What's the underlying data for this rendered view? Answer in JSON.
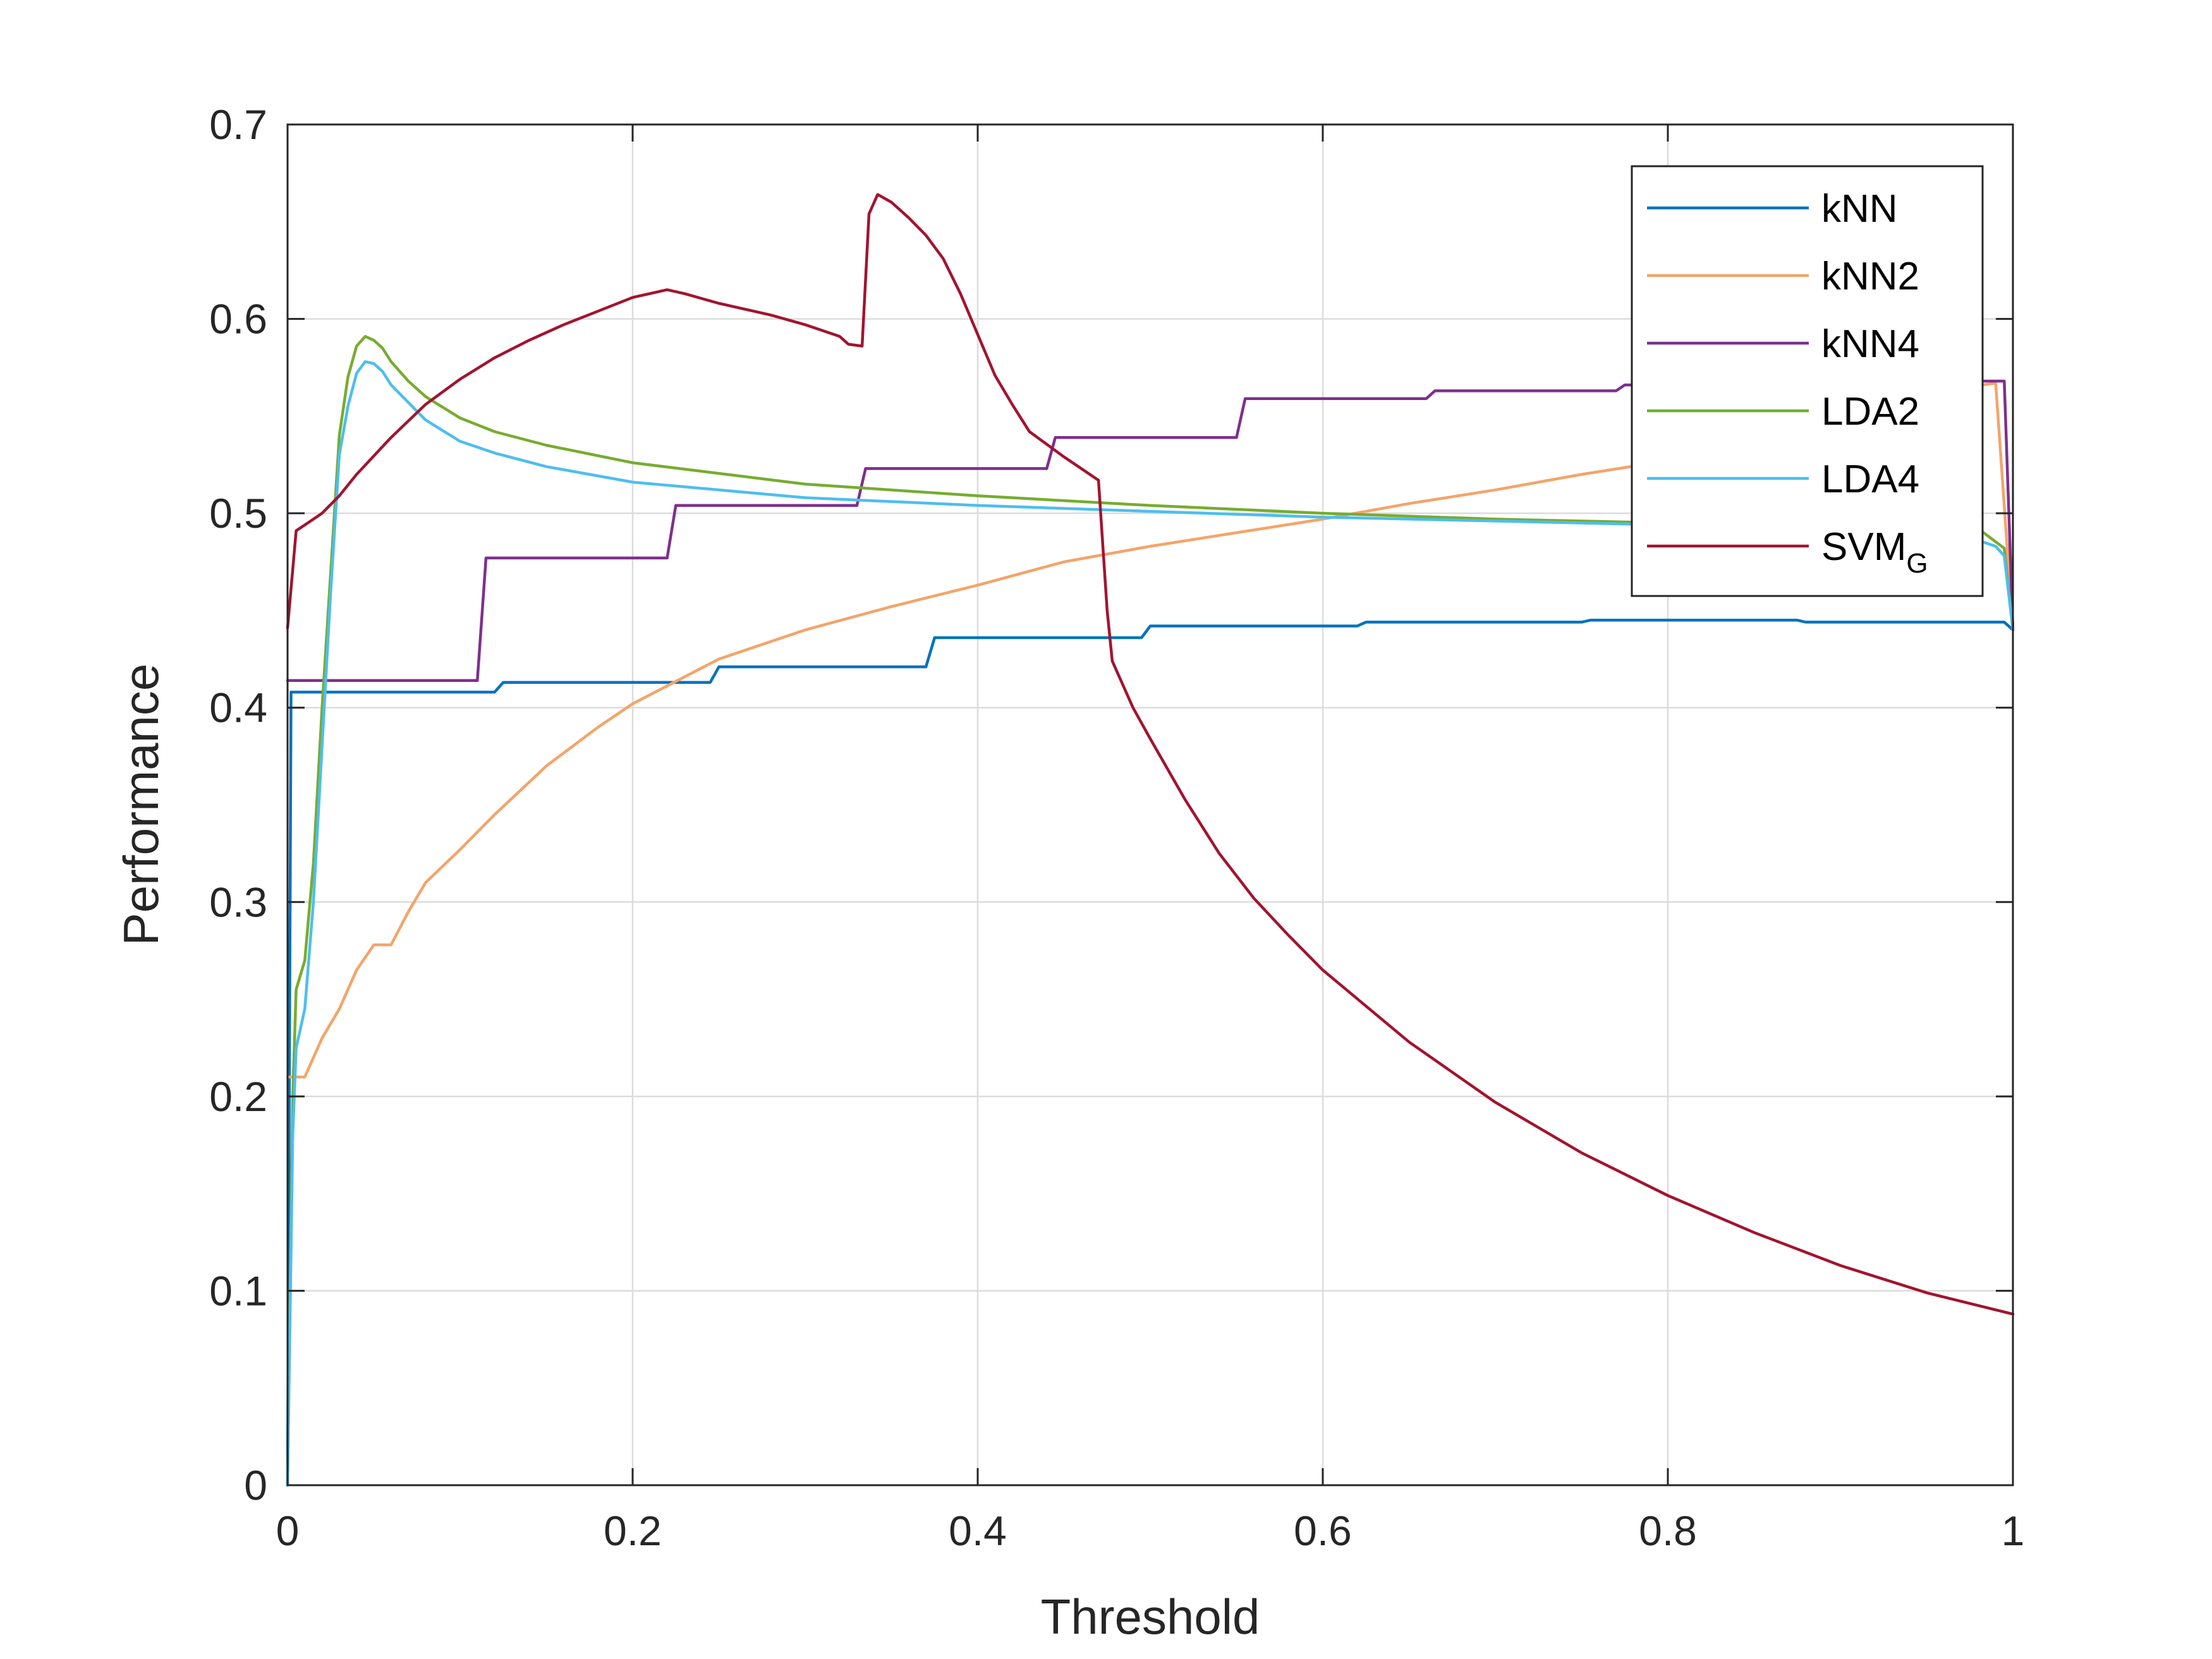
{
  "chart_data": {
    "type": "line",
    "title": "",
    "xlabel": "Threshold",
    "ylabel": "Performance",
    "xlim": [
      0,
      1
    ],
    "ylim": [
      0,
      0.7
    ],
    "xticks": [
      0,
      0.2,
      0.4,
      0.6,
      0.8,
      1
    ],
    "xtick_labels": [
      "0",
      "0.2",
      "0.4",
      "0.6",
      "0.8",
      "1"
    ],
    "yticks": [
      0,
      0.1,
      0.2,
      0.3,
      0.4,
      0.5,
      0.6,
      0.7
    ],
    "ytick_labels": [
      "0",
      "0.1",
      "0.2",
      "0.3",
      "0.4",
      "0.5",
      "0.6",
      "0.7"
    ],
    "grid": true,
    "legend_position": "top-right",
    "series": [
      {
        "name": "kNN",
        "color": "#0072BD",
        "points": [
          [
            0,
            0
          ],
          [
            0.002,
            0.408
          ],
          [
            0.12,
            0.408
          ],
          [
            0.125,
            0.413
          ],
          [
            0.245,
            0.413
          ],
          [
            0.25,
            0.421
          ],
          [
            0.37,
            0.421
          ],
          [
            0.375,
            0.436
          ],
          [
            0.495,
            0.436
          ],
          [
            0.5,
            0.442
          ],
          [
            0.62,
            0.442
          ],
          [
            0.625,
            0.444
          ],
          [
            0.75,
            0.444
          ],
          [
            0.755,
            0.445
          ],
          [
            0.875,
            0.445
          ],
          [
            0.88,
            0.444
          ],
          [
            0.995,
            0.444
          ],
          [
            1,
            0.44
          ]
        ]
      },
      {
        "name": "kNN2",
        "color": "#F4A46A",
        "points": [
          [
            0,
            0.21
          ],
          [
            0.01,
            0.21
          ],
          [
            0.02,
            0.23
          ],
          [
            0.03,
            0.245
          ],
          [
            0.04,
            0.265
          ],
          [
            0.05,
            0.278
          ],
          [
            0.06,
            0.278
          ],
          [
            0.07,
            0.295
          ],
          [
            0.08,
            0.31
          ],
          [
            0.1,
            0.327
          ],
          [
            0.12,
            0.345
          ],
          [
            0.15,
            0.37
          ],
          [
            0.18,
            0.39
          ],
          [
            0.2,
            0.402
          ],
          [
            0.25,
            0.425
          ],
          [
            0.3,
            0.44
          ],
          [
            0.35,
            0.452
          ],
          [
            0.4,
            0.463
          ],
          [
            0.45,
            0.475
          ],
          [
            0.5,
            0.483
          ],
          [
            0.55,
            0.49
          ],
          [
            0.6,
            0.497
          ],
          [
            0.65,
            0.505
          ],
          [
            0.7,
            0.512
          ],
          [
            0.75,
            0.52
          ],
          [
            0.8,
            0.527
          ],
          [
            0.85,
            0.54
          ],
          [
            0.9,
            0.553
          ],
          [
            0.95,
            0.562
          ],
          [
            0.99,
            0.567
          ],
          [
            1,
            0.44
          ]
        ]
      },
      {
        "name": "kNN4",
        "color": "#7E2F8E",
        "points": [
          [
            0,
            0.414
          ],
          [
            0.11,
            0.414
          ],
          [
            0.115,
            0.477
          ],
          [
            0.22,
            0.477
          ],
          [
            0.225,
            0.504
          ],
          [
            0.33,
            0.504
          ],
          [
            0.335,
            0.523
          ],
          [
            0.44,
            0.523
          ],
          [
            0.445,
            0.539
          ],
          [
            0.55,
            0.539
          ],
          [
            0.555,
            0.559
          ],
          [
            0.66,
            0.559
          ],
          [
            0.665,
            0.563
          ],
          [
            0.77,
            0.563
          ],
          [
            0.775,
            0.566
          ],
          [
            0.88,
            0.566
          ],
          [
            0.885,
            0.568
          ],
          [
            0.995,
            0.568
          ],
          [
            1,
            0.44
          ]
        ]
      },
      {
        "name": "LDA2",
        "color": "#77AC30",
        "points": [
          [
            0,
            0
          ],
          [
            0.003,
            0.2
          ],
          [
            0.005,
            0.255
          ],
          [
            0.01,
            0.27
          ],
          [
            0.015,
            0.32
          ],
          [
            0.02,
            0.4
          ],
          [
            0.025,
            0.47
          ],
          [
            0.03,
            0.54
          ],
          [
            0.035,
            0.57
          ],
          [
            0.04,
            0.586
          ],
          [
            0.045,
            0.591
          ],
          [
            0.05,
            0.589
          ],
          [
            0.055,
            0.585
          ],
          [
            0.06,
            0.578
          ],
          [
            0.07,
            0.568
          ],
          [
            0.08,
            0.56
          ],
          [
            0.1,
            0.549
          ],
          [
            0.12,
            0.542
          ],
          [
            0.15,
            0.535
          ],
          [
            0.2,
            0.526
          ],
          [
            0.3,
            0.515
          ],
          [
            0.4,
            0.509
          ],
          [
            0.5,
            0.504
          ],
          [
            0.6,
            0.5
          ],
          [
            0.7,
            0.497
          ],
          [
            0.8,
            0.495
          ],
          [
            0.9,
            0.493
          ],
          [
            0.98,
            0.492
          ],
          [
            0.995,
            0.482
          ],
          [
            1,
            0.44
          ]
        ]
      },
      {
        "name": "LDA4",
        "color": "#4DBEEE",
        "points": [
          [
            0,
            0
          ],
          [
            0.003,
            0.18
          ],
          [
            0.005,
            0.225
          ],
          [
            0.01,
            0.245
          ],
          [
            0.015,
            0.3
          ],
          [
            0.02,
            0.38
          ],
          [
            0.025,
            0.46
          ],
          [
            0.03,
            0.53
          ],
          [
            0.035,
            0.555
          ],
          [
            0.04,
            0.572
          ],
          [
            0.045,
            0.578
          ],
          [
            0.05,
            0.577
          ],
          [
            0.055,
            0.573
          ],
          [
            0.06,
            0.566
          ],
          [
            0.07,
            0.557
          ],
          [
            0.08,
            0.548
          ],
          [
            0.1,
            0.537
          ],
          [
            0.12,
            0.531
          ],
          [
            0.15,
            0.524
          ],
          [
            0.2,
            0.516
          ],
          [
            0.3,
            0.508
          ],
          [
            0.4,
            0.504
          ],
          [
            0.5,
            0.501
          ],
          [
            0.6,
            0.498
          ],
          [
            0.7,
            0.496
          ],
          [
            0.8,
            0.494
          ],
          [
            0.9,
            0.492
          ],
          [
            0.97,
            0.489
          ],
          [
            0.99,
            0.483
          ],
          [
            0.995,
            0.478
          ],
          [
            1,
            0.44
          ]
        ]
      },
      {
        "name": "SVM",
        "name_sub": "G",
        "color": "#A2142F",
        "points": [
          [
            0,
            0.441
          ],
          [
            0.005,
            0.491
          ],
          [
            0.01,
            0.494
          ],
          [
            0.02,
            0.5
          ],
          [
            0.03,
            0.509
          ],
          [
            0.04,
            0.52
          ],
          [
            0.06,
            0.539
          ],
          [
            0.08,
            0.556
          ],
          [
            0.1,
            0.569
          ],
          [
            0.12,
            0.58
          ],
          [
            0.14,
            0.589
          ],
          [
            0.16,
            0.597
          ],
          [
            0.18,
            0.604
          ],
          [
            0.2,
            0.611
          ],
          [
            0.22,
            0.615
          ],
          [
            0.23,
            0.613
          ],
          [
            0.25,
            0.608
          ],
          [
            0.28,
            0.602
          ],
          [
            0.3,
            0.597
          ],
          [
            0.32,
            0.591
          ],
          [
            0.325,
            0.587
          ],
          [
            0.333,
            0.586
          ],
          [
            0.337,
            0.654
          ],
          [
            0.342,
            0.664
          ],
          [
            0.35,
            0.66
          ],
          [
            0.36,
            0.652
          ],
          [
            0.37,
            0.643
          ],
          [
            0.38,
            0.631
          ],
          [
            0.39,
            0.613
          ],
          [
            0.4,
            0.592
          ],
          [
            0.41,
            0.571
          ],
          [
            0.42,
            0.556
          ],
          [
            0.43,
            0.542
          ],
          [
            0.45,
            0.529
          ],
          [
            0.47,
            0.517
          ],
          [
            0.475,
            0.45
          ],
          [
            0.478,
            0.424
          ],
          [
            0.49,
            0.4
          ],
          [
            0.5,
            0.384
          ],
          [
            0.52,
            0.353
          ],
          [
            0.54,
            0.325
          ],
          [
            0.56,
            0.302
          ],
          [
            0.58,
            0.283
          ],
          [
            0.6,
            0.265
          ],
          [
            0.65,
            0.228
          ],
          [
            0.7,
            0.197
          ],
          [
            0.75,
            0.171
          ],
          [
            0.8,
            0.149
          ],
          [
            0.85,
            0.13
          ],
          [
            0.9,
            0.113
          ],
          [
            0.95,
            0.099
          ],
          [
            1,
            0.088
          ]
        ]
      }
    ]
  }
}
